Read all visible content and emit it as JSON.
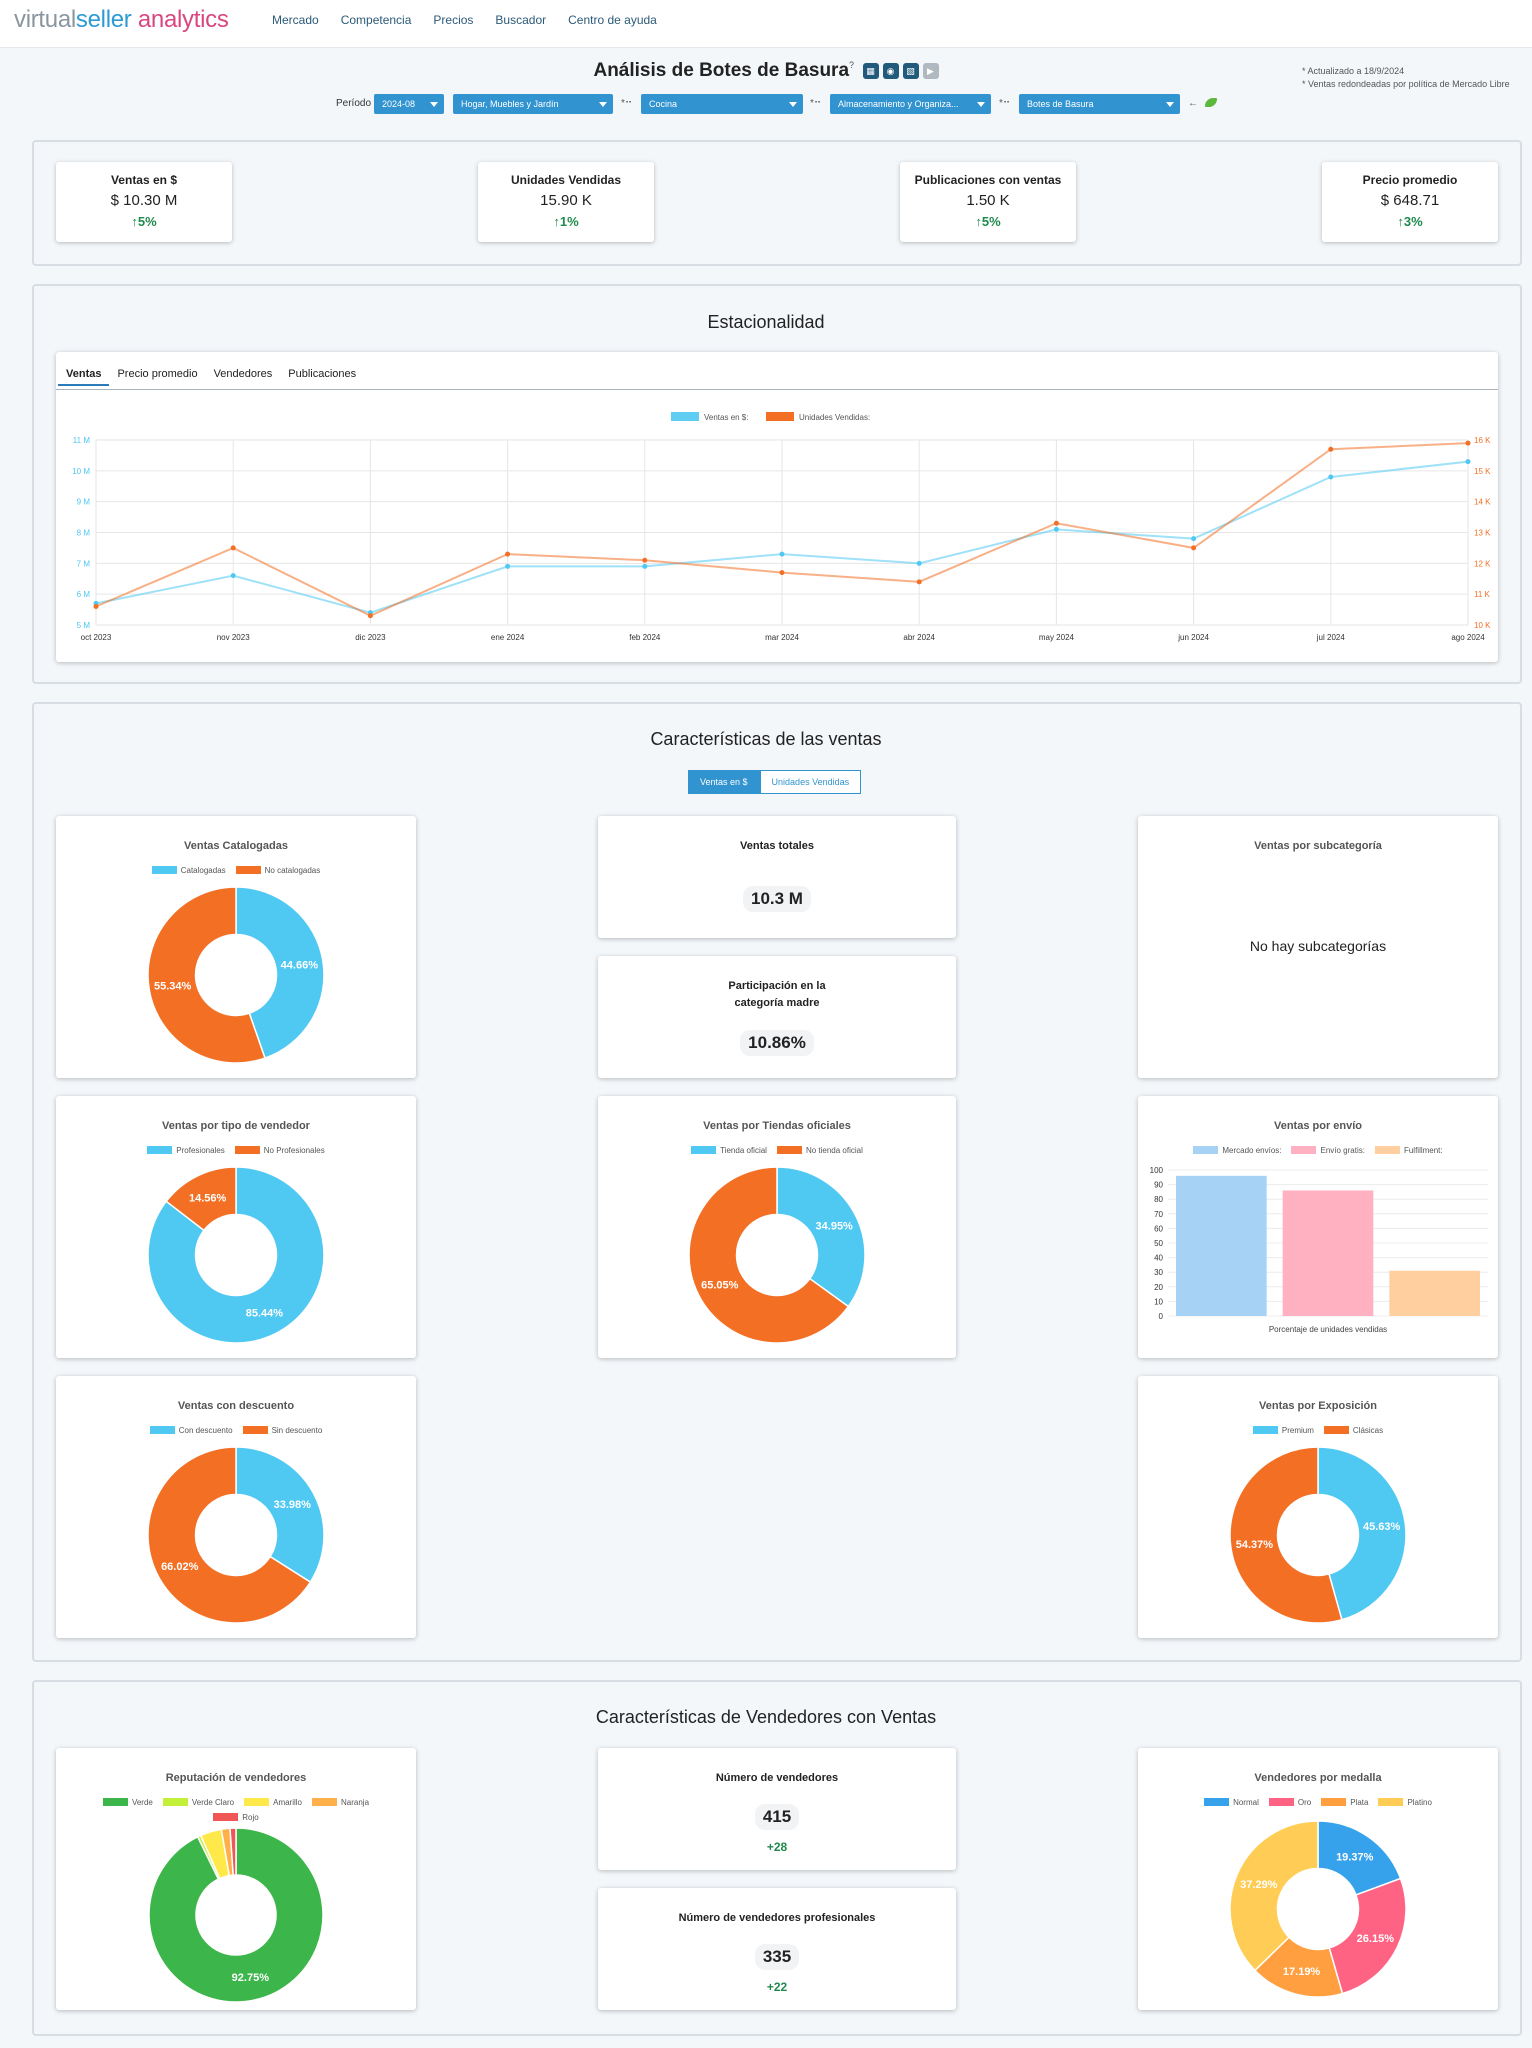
{
  "logo": {
    "part1": "virtual",
    "part2": "seller",
    "part3": " analytics"
  },
  "nav": [
    "Mercado",
    "Competencia",
    "Precios",
    "Buscador",
    "Centro de ayuda"
  ],
  "page": {
    "title": "Análisis de Botes de Basura",
    "info": "?",
    "notes": [
      "* Actualizado a 18/9/2024",
      "* Ventas redondeadas por política de Mercado Libre"
    ]
  },
  "filters": {
    "periodo_label": "Período",
    "periodo": "2024-08",
    "cat1": "Hogar, Muebles y Jardín",
    "cat2": "Cocina",
    "cat3": "Almacenamiento y Organiza...",
    "cat4": "Botes de Basura",
    "sep": "*⠒",
    "back": "←"
  },
  "kpis": [
    {
      "title": "Ventas en $",
      "value": "$ 10.30 M",
      "change": "↑5%"
    },
    {
      "title": "Unidades Vendidas",
      "value": "15.90 K",
      "change": "↑1%"
    },
    {
      "title": "Publicaciones con ventas",
      "value": "1.50 K",
      "change": "↑5%"
    },
    {
      "title": "Precio promedio",
      "value": "$ 648.71",
      "change": "↑3%"
    }
  ],
  "estacionalidad": {
    "title": "Estacionalidad",
    "tabs": [
      "Ventas",
      "Precio promedio",
      "Vendedores",
      "Publicaciones"
    ]
  },
  "chart_data": [
    {
      "type": "line",
      "title": "",
      "x": [
        "oct 2023",
        "nov 2023",
        "dic 2023",
        "ene 2024",
        "feb 2024",
        "mar 2024",
        "abr 2024",
        "may 2024",
        "jun 2024",
        "jul 2024",
        "ago 2024"
      ],
      "series": [
        {
          "name": "Ventas en $:",
          "axis": "left",
          "color": "#4fc8f2",
          "values": [
            5.7,
            6.6,
            5.4,
            6.9,
            6.9,
            7.3,
            7.0,
            8.1,
            7.8,
            9.8,
            10.3
          ]
        },
        {
          "name": "Unidades Vendidas:",
          "axis": "right",
          "color": "#f26f24",
          "values": [
            10.6,
            12.5,
            10.3,
            12.3,
            12.1,
            11.7,
            11.4,
            13.3,
            12.5,
            15.7,
            15.9
          ]
        }
      ],
      "ylim_left": [
        5,
        11
      ],
      "yticks_left": [
        "5 M",
        "6 M",
        "7 M",
        "8 M",
        "9 M",
        "10 M",
        "11 M"
      ],
      "ylim_right": [
        10,
        16
      ],
      "yticks_right": [
        "10 K",
        "11 K",
        "12 K",
        "13 K",
        "14 K",
        "15 K",
        "16 K"
      ],
      "legend": "top",
      "grid": true
    },
    {
      "type": "pie",
      "title": "Ventas Catalogadas",
      "labels": [
        "Catalogadas",
        "No catalogadas"
      ],
      "values": [
        44.66,
        55.34
      ],
      "colors": [
        "#4fc8f2",
        "#f26f24"
      ],
      "display": [
        "44.66%",
        "55.34%"
      ]
    },
    {
      "type": "pie",
      "title": "Ventas por tipo de vendedor",
      "labels": [
        "Profesionales",
        "No Profesionales"
      ],
      "values": [
        85.44,
        14.56
      ],
      "colors": [
        "#4fc8f2",
        "#f26f24"
      ],
      "display": [
        "85.44%",
        "14.56%"
      ]
    },
    {
      "type": "pie",
      "title": "Ventas por Tiendas oficiales",
      "labels": [
        "Tienda oficial",
        "No tienda oficial"
      ],
      "values": [
        34.95,
        65.05
      ],
      "colors": [
        "#4fc8f2",
        "#f26f24"
      ],
      "display": [
        "34.95%",
        "65.05%"
      ]
    },
    {
      "type": "bar",
      "title": "Ventas por envío",
      "categories": [
        "Mercado envíos:",
        "Envío gratis:",
        "Fulfillment:"
      ],
      "values": [
        96,
        86,
        31
      ],
      "colors": [
        "#a6d3f5",
        "#ffb1c1",
        "#ffcf9f"
      ],
      "ylim": [
        0,
        100
      ],
      "yticks": [
        0,
        10,
        20,
        30,
        40,
        50,
        60,
        70,
        80,
        90,
        100
      ],
      "xlabel": "Porcentaje de unidades vendidas"
    },
    {
      "type": "pie",
      "title": "Ventas con descuento",
      "labels": [
        "Con descuento",
        "Sin descuento"
      ],
      "values": [
        33.98,
        66.02
      ],
      "colors": [
        "#4fc8f2",
        "#f26f24"
      ],
      "display": [
        "33.98%",
        "66.02%"
      ]
    },
    {
      "type": "pie",
      "title": "Ventas por Exposición",
      "labels": [
        "Premium",
        "Clásicas"
      ],
      "values": [
        45.63,
        54.37
      ],
      "colors": [
        "#4fc8f2",
        "#f26f24"
      ],
      "display": [
        "45.63%",
        "54.37%"
      ]
    },
    {
      "type": "pie",
      "title": "Reputación de vendedores",
      "labels": [
        "Verde",
        "Verde Claro",
        "Amarillo",
        "Naranja",
        "Rojo"
      ],
      "values": [
        92.75,
        0.6,
        3.95,
        1.6,
        1.1
      ],
      "colors": [
        "#3cb54a",
        "#c5f03a",
        "#ffe94a",
        "#ffb04a",
        "#f05656"
      ],
      "display": [
        "92.75%",
        "",
        "",
        "",
        ""
      ]
    },
    {
      "type": "pie",
      "title": "Vendedores por medalla",
      "labels": [
        "Normal",
        "Oro",
        "Plata",
        "Platino"
      ],
      "values": [
        19.37,
        26.15,
        17.19,
        37.29
      ],
      "colors": [
        "#36a2eb",
        "#ff6384",
        "#ff9f40",
        "#ffcd56"
      ],
      "display": [
        "19.37%",
        "26.15%",
        "17.19%",
        "37.29%"
      ]
    }
  ],
  "caracteristicas": {
    "title": "Características de las ventas",
    "toggle_on": "Ventas en $",
    "toggle_off": "Unidades Vendidas",
    "totales": {
      "title": "Ventas totales",
      "value": "10.3 M"
    },
    "participacion": {
      "title1": "Participación en la",
      "title2": "categoría madre",
      "value": "10.86%"
    },
    "subcat": {
      "title": "Ventas por subcategoría",
      "msg": "No hay subcategorías"
    }
  },
  "vendedores": {
    "title": "Características de Vendedores con Ventas",
    "num": {
      "title": "Número de vendedores",
      "value": "415",
      "delta": "+28"
    },
    "prof": {
      "title": "Número de vendedores profesionales",
      "value": "335",
      "delta": "+22"
    }
  }
}
